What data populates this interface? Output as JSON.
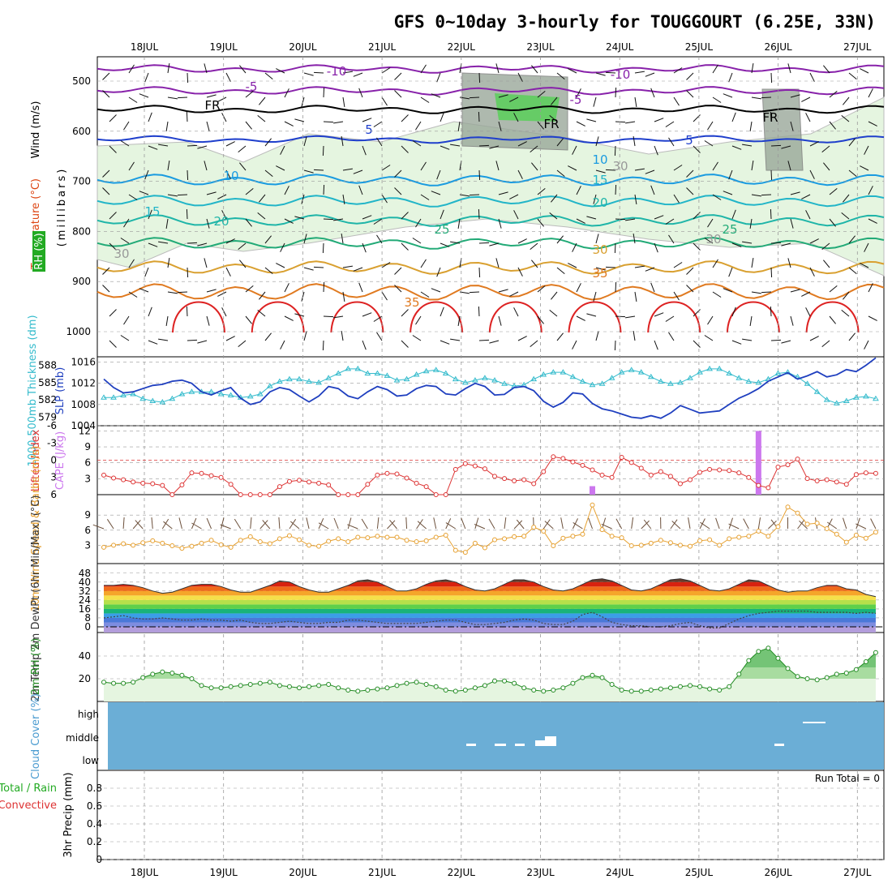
{
  "title": "GFS 0~10day 3-hourly for TOUGGOURT (6.25E, 33N)",
  "colors": {
    "bg": "#ffffff",
    "grid": "#999999",
    "cloud": "#6baed6",
    "rhFill": "#e5f5e0",
    "slp": "#1f3fbf",
    "thick": "#33bbcc",
    "li": "#dd3333",
    "cape": "#cc77ee",
    "wind": "#e6a030",
    "barb": "#6b4f3a",
    "rh2m": "#228b22"
  },
  "chart_data": {
    "type": "meteogram",
    "days": [
      "18JUL",
      "19JUL",
      "20JUL",
      "21JUL",
      "22JUL",
      "23JUL",
      "24JUL",
      "25JUL",
      "26JUL",
      "27JUL"
    ],
    "upper_air": {
      "ylabel": "(millibars)",
      "legend": [
        "Wind (m/s)",
        "Temperature (°C)",
        "RH (%)"
      ],
      "pressure_ticks": [
        "500",
        "600",
        "700",
        "800",
        "900",
        "1000"
      ],
      "isotherm_labels": [
        "-10",
        "-10",
        "-5",
        "-5",
        "FR",
        "FR",
        "FR",
        "5",
        "5",
        "10",
        "10",
        "15",
        "15",
        "20",
        "20",
        "25",
        "25",
        "30",
        "35",
        "35",
        "30",
        "30",
        "30"
      ]
    },
    "slp_thickness": {
      "ylabel_left": "1000-500mb Thickness (dm)",
      "ylabel_right": "SLP (mb)",
      "thickness_ticks": [
        "588",
        "585",
        "582",
        "579"
      ],
      "slp_ticks": [
        "1016",
        "1012",
        "1008",
        "1004"
      ],
      "slp": [
        1012.8,
        1011.2,
        1010.2,
        1010.4,
        1011.0,
        1011.6,
        1011.8,
        1012.4,
        1012.6,
        1012.0,
        1010.4,
        1009.8,
        1010.6,
        1011.2,
        1009.2,
        1008.0,
        1008.5,
        1010.4,
        1011.2,
        1010.8,
        1009.6,
        1008.5,
        1009.6,
        1011.4,
        1011.0,
        1009.6,
        1009.1,
        1010.4,
        1011.4,
        1010.8,
        1009.6,
        1009.8,
        1011.0,
        1011.6,
        1011.4,
        1010.0,
        1009.8,
        1011.0,
        1012.0,
        1011.4,
        1009.8,
        1009.9,
        1011.2,
        1011.4,
        1010.6,
        1008.6,
        1007.5,
        1008.4,
        1010.2,
        1010.0,
        1008.2,
        1007.2,
        1006.8,
        1006.2,
        1005.6,
        1005.4,
        1005.9,
        1005.4,
        1006.4,
        1007.8,
        1007.1,
        1006.4,
        1006.6,
        1006.8,
        1008.0,
        1009.2,
        1010.0,
        1011.0,
        1012.4,
        1013.2,
        1014.0,
        1012.8,
        1013.4,
        1014.2,
        1013.2,
        1013.6,
        1014.6,
        1014.2,
        1015.4,
        1016.8
      ],
      "thickness": [
        582.4,
        582.4,
        582.8,
        583.0,
        582.2,
        581.8,
        581.6,
        582.2,
        583.0,
        583.4,
        583.4,
        583.4,
        583.0,
        582.8,
        582.4,
        582.6,
        583.0,
        584.4,
        585.2,
        585.6,
        585.6,
        585.2,
        585.0,
        585.8,
        586.6,
        587.4,
        587.4,
        586.6,
        586.6,
        586.2,
        585.4,
        585.6,
        586.4,
        587.0,
        587.2,
        586.6,
        585.6,
        585.0,
        585.4,
        585.8,
        585.4,
        584.8,
        584.4,
        584.6,
        585.6,
        586.4,
        586.8,
        586.8,
        586.0,
        585.2,
        584.6,
        584.8,
        585.8,
        586.8,
        587.2,
        586.8,
        586.0,
        585.2,
        584.8,
        585.0,
        585.8,
        586.8,
        587.4,
        587.4,
        586.6,
        585.8,
        585.2,
        585.0,
        585.6,
        586.6,
        586.8,
        586.0,
        584.8,
        583.4,
        582.0,
        581.4,
        581.8,
        582.4,
        582.6,
        582.2
      ]
    },
    "lifted_index_cape": {
      "ylabel_left": "Lifted Index",
      "ylabel_right": "CAPE (J/kg)",
      "li_ticks": [
        "-6",
        "-3",
        "0",
        "3",
        "6"
      ],
      "cape_ticks": [
        "12",
        "9",
        "6",
        "3"
      ],
      "li": [
        2.6,
        3.1,
        3.4,
        3.8,
        4.0,
        4.1,
        4.4,
        6.6,
        4.3,
        2.2,
        2.3,
        2.7,
        3.0,
        4.2,
        6.8,
        6.8,
        6.6,
        6.9,
        4.6,
        3.7,
        3.5,
        3.8,
        4.0,
        4.3,
        6.6,
        6.8,
        6.6,
        4.2,
        2.6,
        2.3,
        2.4,
        3.1,
        4.0,
        4.6,
        6.8,
        6.6,
        1.6,
        0.6,
        1.0,
        1.5,
        2.8,
        3.2,
        3.6,
        3.4,
        4.1,
        2.0,
        -0.6,
        -0.3,
        0.3,
        0.9,
        1.7,
        2.6,
        3.0,
        -0.5,
        0.4,
        1.4,
        2.6,
        2.0,
        2.8,
        4.1,
        3.4,
        2.1,
        1.6,
        1.7,
        1.8,
        2.2,
        3.0,
        4.4,
        4.8,
        1.2,
        0.8,
        -0.2,
        3.2,
        3.6,
        3.4,
        3.8,
        4.2,
        2.5,
        2.2,
        2.3
      ],
      "cape": [
        0,
        0,
        0,
        0,
        0,
        0,
        0,
        0,
        0,
        0,
        0,
        0,
        0,
        0,
        0,
        0,
        0,
        0,
        0,
        0,
        0,
        0,
        0,
        0,
        0,
        0,
        0,
        0,
        0,
        0,
        0,
        0,
        0,
        0,
        0,
        0,
        0,
        0,
        0,
        0,
        0,
        0,
        0,
        0,
        0,
        0,
        0,
        0,
        0,
        0,
        1.6,
        0,
        0,
        0,
        0,
        0,
        0,
        0,
        0,
        0,
        0,
        0,
        0,
        0,
        0,
        0,
        0,
        12.0,
        0,
        0,
        0,
        0,
        0,
        0,
        0,
        0,
        0,
        0,
        0,
        0
      ]
    },
    "wind10m": {
      "ylabel": "10m Wind Speed & Barbs (m/s)",
      "ticks": [
        "9",
        "6",
        "3"
      ],
      "speed": [
        2.6,
        3.0,
        3.3,
        3.0,
        3.5,
        3.9,
        3.4,
        2.9,
        2.4,
        2.8,
        3.4,
        4.0,
        3.1,
        2.6,
        4.0,
        4.7,
        3.7,
        3.3,
        4.3,
        4.9,
        4.1,
        3.0,
        2.8,
        3.8,
        4.3,
        3.7,
        4.6,
        4.5,
        4.8,
        4.6,
        4.6,
        4.0,
        3.7,
        3.9,
        4.6,
        5.0,
        2.0,
        1.6,
        3.4,
        2.5,
        4.1,
        4.3,
        4.7,
        4.8,
        6.6,
        5.8,
        2.9,
        4.4,
        4.8,
        5.2,
        11.0,
        6.1,
        4.8,
        4.5,
        2.9,
        3.0,
        3.4,
        4.0,
        3.5,
        3.0,
        2.8,
        3.9,
        4.1,
        3.0,
        4.3,
        4.6,
        4.8,
        5.8,
        4.8,
        6.7,
        10.6,
        9.4,
        7.2,
        7.4,
        6.3,
        5.2,
        3.6,
        5.0,
        4.4,
        5.6
      ]
    },
    "temp2m": {
      "ylabel": "2m Temp 2m DewPt (6hr Min/Max) (°C)",
      "ticks": [
        "48",
        "40",
        "32",
        "24",
        "16",
        "8",
        "0"
      ],
      "temp": [
        37,
        37,
        38,
        37,
        35,
        32,
        30,
        31,
        34,
        37,
        38,
        38,
        36,
        33,
        31,
        31,
        34,
        37,
        41,
        40,
        36,
        33,
        31,
        31,
        34,
        37,
        41,
        42,
        40,
        36,
        32,
        32,
        34,
        38,
        41,
        42,
        40,
        36,
        33,
        32,
        34,
        38,
        42,
        42,
        40,
        36,
        33,
        32,
        34,
        38,
        42,
        43,
        41,
        37,
        33,
        32,
        34,
        38,
        42,
        43,
        41,
        37,
        33,
        32,
        34,
        38,
        42,
        41,
        37,
        33,
        31,
        32,
        32,
        35,
        37,
        37,
        34,
        33,
        29,
        27
      ],
      "dewpt": [
        8,
        9,
        10,
        8,
        7,
        7,
        8,
        7,
        6,
        6,
        7,
        6,
        6,
        5,
        6,
        4,
        3,
        3,
        4,
        5,
        4,
        3,
        3,
        4,
        4,
        6,
        6,
        5,
        4,
        3,
        3,
        3,
        3,
        4,
        5,
        6,
        6,
        4,
        2,
        2,
        3,
        4,
        6,
        7,
        6,
        3,
        2,
        2,
        5,
        11,
        13,
        9,
        4,
        2,
        1,
        1,
        0,
        0,
        1,
        3,
        4,
        1,
        -1,
        -1,
        3,
        7,
        10,
        12,
        13,
        14,
        14,
        14,
        14,
        13,
        13,
        13,
        13,
        12,
        13,
        12
      ]
    },
    "rh2m": {
      "ylabel": "2m RH (%)",
      "ticks": [
        "40",
        "20"
      ],
      "values": [
        17,
        16,
        16,
        17,
        21,
        24,
        26,
        25,
        23,
        20,
        14,
        12,
        12,
        13,
        14,
        15,
        16,
        17,
        14,
        13,
        12,
        13,
        14,
        15,
        12,
        10,
        9,
        10,
        11,
        12,
        14,
        16,
        17,
        15,
        13,
        10,
        9,
        10,
        12,
        14,
        18,
        18,
        16,
        12,
        10,
        9,
        10,
        12,
        16,
        21,
        23,
        21,
        15,
        10,
        9,
        9,
        10,
        11,
        12,
        13,
        14,
        13,
        11,
        10,
        13,
        24,
        36,
        44,
        47,
        38,
        29,
        22,
        20,
        19,
        21,
        24,
        25,
        28,
        35,
        43
      ]
    },
    "cloud": {
      "ylabel": "Cloud Cover (%)",
      "levels": [
        "high",
        "middle",
        "low"
      ]
    },
    "precip": {
      "ylabel": "3hr Precip (mm)",
      "legend": [
        "Total / Rain",
        "Convective"
      ],
      "ticks": [
        "0.8",
        "0.6",
        "0.4",
        "0.2",
        "0"
      ],
      "run_total": "Run Total = 0"
    }
  }
}
